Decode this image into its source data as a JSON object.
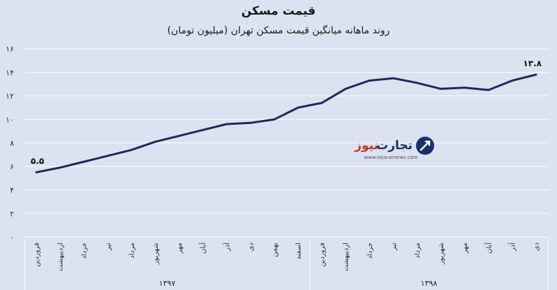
{
  "header": {
    "title": "قیمت مسکن",
    "subtitle": "روند ماهانه میانگین قیمت مسکن تهران (میلیون تومان)"
  },
  "watermark": {
    "brand_main": "تجارت",
    "brand_accent": "نیوز",
    "url": "www.tejaratnews.com"
  },
  "chart_data": {
    "type": "line",
    "title": "قیمت مسکن",
    "subtitle": "روند ماهانه میانگین قیمت مسکن تهران (میلیون تومان)",
    "categories": [
      "فروردین",
      "اردیبهشت",
      "خرداد",
      "تیر",
      "مرداد",
      "شهریور",
      "مهر",
      "آبان",
      "آذر",
      "دی",
      "بهمن",
      "اسفند",
      "فروردین",
      "اردیبهشت",
      "خرداد",
      "تیر",
      "مرداد",
      "شهریور",
      "مهر",
      "آبان",
      "آذر",
      "دی"
    ],
    "groups": [
      {
        "label": "۱۳۹۷",
        "count": 12
      },
      {
        "label": "۱۳۹۸",
        "count": 10
      }
    ],
    "series": [
      {
        "values": [
          5.5,
          5.9,
          6.4,
          6.9,
          7.4,
          8.1,
          8.6,
          9.1,
          9.6,
          9.7,
          10.0,
          11.0,
          11.4,
          12.6,
          13.3,
          13.5,
          13.1,
          12.6,
          12.7,
          12.5,
          13.3,
          13.8
        ]
      }
    ],
    "data_labels": [
      {
        "index": 0,
        "text": "۵.۵"
      },
      {
        "index": 21,
        "text": "۱۳.۸"
      }
    ],
    "yticks": [
      0,
      2,
      4,
      6,
      8,
      10,
      12,
      14,
      16
    ],
    "ytick_labels": [
      "۰",
      "۲",
      "۴",
      "۶",
      "۸",
      "۱۰",
      "۱۲",
      "۱۴",
      "۱۶"
    ],
    "ylim": [
      0,
      16
    ],
    "grid": "horizontal",
    "line_color": "#1c2a5c",
    "grid_color": "#ffffff",
    "plot_bg": "#dbe3f0"
  }
}
